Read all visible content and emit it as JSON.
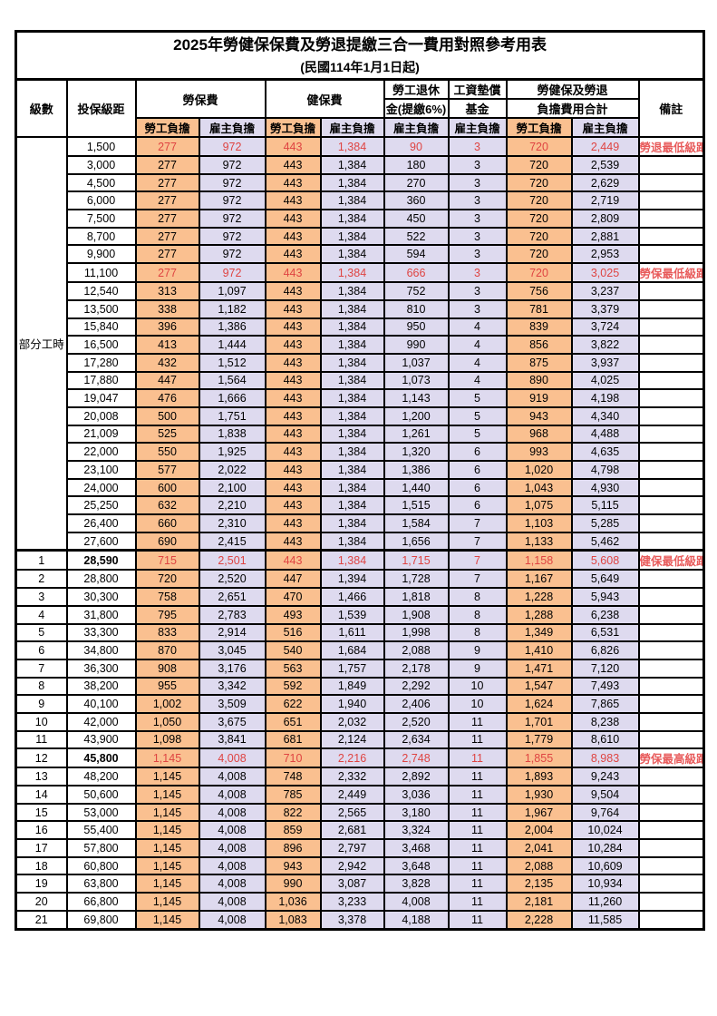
{
  "title": "2025年勞健保保費及勞退提繳三合一費用對照參考用表",
  "subtitle": "(民國114年1月1日起)",
  "columns": {
    "level": "級數",
    "bracket": "投保級距",
    "labor_insurance": "勞保費",
    "health_insurance": "健保費",
    "pension_line1": "勞工退休",
    "pension_line2": "金(提繳6%)",
    "wage_fund_line1": "工資墊償",
    "wage_fund_line2": "基金",
    "total_line1": "勞健保及勞退",
    "total_line2": "負擔費用合計",
    "remarks": "備註",
    "employee": "勞工負擔",
    "employer": "雇主負擔"
  },
  "part_time_label": "部分工時",
  "colors": {
    "employee_bg": "#FAC090",
    "employer_bg": "#DEDAEF",
    "highlight_text": "#DF4442",
    "border": "#000000"
  },
  "rows": [
    {
      "level": "",
      "bracket": "1,500",
      "li_emp": "277",
      "li_er": "972",
      "hi_emp": "443",
      "hi_er": "1,384",
      "pension": "90",
      "fund": "3",
      "tot_emp": "720",
      "tot_er": "2,449",
      "remark": "勞退最低級距",
      "red": true
    },
    {
      "level": "",
      "bracket": "3,000",
      "li_emp": "277",
      "li_er": "972",
      "hi_emp": "443",
      "hi_er": "1,384",
      "pension": "180",
      "fund": "3",
      "tot_emp": "720",
      "tot_er": "2,539",
      "remark": ""
    },
    {
      "level": "",
      "bracket": "4,500",
      "li_emp": "277",
      "li_er": "972",
      "hi_emp": "443",
      "hi_er": "1,384",
      "pension": "270",
      "fund": "3",
      "tot_emp": "720",
      "tot_er": "2,629",
      "remark": ""
    },
    {
      "level": "",
      "bracket": "6,000",
      "li_emp": "277",
      "li_er": "972",
      "hi_emp": "443",
      "hi_er": "1,384",
      "pension": "360",
      "fund": "3",
      "tot_emp": "720",
      "tot_er": "2,719",
      "remark": ""
    },
    {
      "level": "",
      "bracket": "7,500",
      "li_emp": "277",
      "li_er": "972",
      "hi_emp": "443",
      "hi_er": "1,384",
      "pension": "450",
      "fund": "3",
      "tot_emp": "720",
      "tot_er": "2,809",
      "remark": ""
    },
    {
      "level": "",
      "bracket": "8,700",
      "li_emp": "277",
      "li_er": "972",
      "hi_emp": "443",
      "hi_er": "1,384",
      "pension": "522",
      "fund": "3",
      "tot_emp": "720",
      "tot_er": "2,881",
      "remark": ""
    },
    {
      "level": "",
      "bracket": "9,900",
      "li_emp": "277",
      "li_er": "972",
      "hi_emp": "443",
      "hi_er": "1,384",
      "pension": "594",
      "fund": "3",
      "tot_emp": "720",
      "tot_er": "2,953",
      "remark": ""
    },
    {
      "level": "",
      "bracket": "11,100",
      "li_emp": "277",
      "li_er": "972",
      "hi_emp": "443",
      "hi_er": "1,384",
      "pension": "666",
      "fund": "3",
      "tot_emp": "720",
      "tot_er": "3,025",
      "remark": "勞保最低級距",
      "red": true
    },
    {
      "level": "",
      "bracket": "12,540",
      "li_emp": "313",
      "li_er": "1,097",
      "hi_emp": "443",
      "hi_er": "1,384",
      "pension": "752",
      "fund": "3",
      "tot_emp": "756",
      "tot_er": "3,237",
      "remark": ""
    },
    {
      "level": "",
      "bracket": "13,500",
      "li_emp": "338",
      "li_er": "1,182",
      "hi_emp": "443",
      "hi_er": "1,384",
      "pension": "810",
      "fund": "3",
      "tot_emp": "781",
      "tot_er": "3,379",
      "remark": ""
    },
    {
      "level": "",
      "bracket": "15,840",
      "li_emp": "396",
      "li_er": "1,386",
      "hi_emp": "443",
      "hi_er": "1,384",
      "pension": "950",
      "fund": "4",
      "tot_emp": "839",
      "tot_er": "3,724",
      "remark": ""
    },
    {
      "level": "",
      "bracket": "16,500",
      "li_emp": "413",
      "li_er": "1,444",
      "hi_emp": "443",
      "hi_er": "1,384",
      "pension": "990",
      "fund": "4",
      "tot_emp": "856",
      "tot_er": "3,822",
      "remark": ""
    },
    {
      "level": "",
      "bracket": "17,280",
      "li_emp": "432",
      "li_er": "1,512",
      "hi_emp": "443",
      "hi_er": "1,384",
      "pension": "1,037",
      "fund": "4",
      "tot_emp": "875",
      "tot_er": "3,937",
      "remark": ""
    },
    {
      "level": "",
      "bracket": "17,880",
      "li_emp": "447",
      "li_er": "1,564",
      "hi_emp": "443",
      "hi_er": "1,384",
      "pension": "1,073",
      "fund": "4",
      "tot_emp": "890",
      "tot_er": "4,025",
      "remark": ""
    },
    {
      "level": "",
      "bracket": "19,047",
      "li_emp": "476",
      "li_er": "1,666",
      "hi_emp": "443",
      "hi_er": "1,384",
      "pension": "1,143",
      "fund": "5",
      "tot_emp": "919",
      "tot_er": "4,198",
      "remark": ""
    },
    {
      "level": "",
      "bracket": "20,008",
      "li_emp": "500",
      "li_er": "1,751",
      "hi_emp": "443",
      "hi_er": "1,384",
      "pension": "1,200",
      "fund": "5",
      "tot_emp": "943",
      "tot_er": "4,340",
      "remark": ""
    },
    {
      "level": "",
      "bracket": "21,009",
      "li_emp": "525",
      "li_er": "1,838",
      "hi_emp": "443",
      "hi_er": "1,384",
      "pension": "1,261",
      "fund": "5",
      "tot_emp": "968",
      "tot_er": "4,488",
      "remark": ""
    },
    {
      "level": "",
      "bracket": "22,000",
      "li_emp": "550",
      "li_er": "1,925",
      "hi_emp": "443",
      "hi_er": "1,384",
      "pension": "1,320",
      "fund": "6",
      "tot_emp": "993",
      "tot_er": "4,635",
      "remark": ""
    },
    {
      "level": "",
      "bracket": "23,100",
      "li_emp": "577",
      "li_er": "2,022",
      "hi_emp": "443",
      "hi_er": "1,384",
      "pension": "1,386",
      "fund": "6",
      "tot_emp": "1,020",
      "tot_er": "4,798",
      "remark": ""
    },
    {
      "level": "",
      "bracket": "24,000",
      "li_emp": "600",
      "li_er": "2,100",
      "hi_emp": "443",
      "hi_er": "1,384",
      "pension": "1,440",
      "fund": "6",
      "tot_emp": "1,043",
      "tot_er": "4,930",
      "remark": ""
    },
    {
      "level": "",
      "bracket": "25,250",
      "li_emp": "632",
      "li_er": "2,210",
      "hi_emp": "443",
      "hi_er": "1,384",
      "pension": "1,515",
      "fund": "6",
      "tot_emp": "1,075",
      "tot_er": "5,115",
      "remark": ""
    },
    {
      "level": "",
      "bracket": "26,400",
      "li_emp": "660",
      "li_er": "2,310",
      "hi_emp": "443",
      "hi_er": "1,384",
      "pension": "1,584",
      "fund": "7",
      "tot_emp": "1,103",
      "tot_er": "5,285",
      "remark": ""
    },
    {
      "level": "",
      "bracket": "27,600",
      "li_emp": "690",
      "li_er": "2,415",
      "hi_emp": "443",
      "hi_er": "1,384",
      "pension": "1,656",
      "fund": "7",
      "tot_emp": "1,133",
      "tot_er": "5,462",
      "remark": ""
    },
    {
      "level": "1",
      "bracket": "28,590",
      "li_emp": "715",
      "li_er": "2,501",
      "hi_emp": "443",
      "hi_er": "1,384",
      "pension": "1,715",
      "fund": "7",
      "tot_emp": "1,158",
      "tot_er": "5,608",
      "remark": "健保最低級距",
      "red": true,
      "bold": true,
      "thick": true
    },
    {
      "level": "2",
      "bracket": "28,800",
      "li_emp": "720",
      "li_er": "2,520",
      "hi_emp": "447",
      "hi_er": "1,394",
      "pension": "1,728",
      "fund": "7",
      "tot_emp": "1,167",
      "tot_er": "5,649",
      "remark": ""
    },
    {
      "level": "3",
      "bracket": "30,300",
      "li_emp": "758",
      "li_er": "2,651",
      "hi_emp": "470",
      "hi_er": "1,466",
      "pension": "1,818",
      "fund": "8",
      "tot_emp": "1,228",
      "tot_er": "5,943",
      "remark": ""
    },
    {
      "level": "4",
      "bracket": "31,800",
      "li_emp": "795",
      "li_er": "2,783",
      "hi_emp": "493",
      "hi_er": "1,539",
      "pension": "1,908",
      "fund": "8",
      "tot_emp": "1,288",
      "tot_er": "6,238",
      "remark": ""
    },
    {
      "level": "5",
      "bracket": "33,300",
      "li_emp": "833",
      "li_er": "2,914",
      "hi_emp": "516",
      "hi_er": "1,611",
      "pension": "1,998",
      "fund": "8",
      "tot_emp": "1,349",
      "tot_er": "6,531",
      "remark": ""
    },
    {
      "level": "6",
      "bracket": "34,800",
      "li_emp": "870",
      "li_er": "3,045",
      "hi_emp": "540",
      "hi_er": "1,684",
      "pension": "2,088",
      "fund": "9",
      "tot_emp": "1,410",
      "tot_er": "6,826",
      "remark": ""
    },
    {
      "level": "7",
      "bracket": "36,300",
      "li_emp": "908",
      "li_er": "3,176",
      "hi_emp": "563",
      "hi_er": "1,757",
      "pension": "2,178",
      "fund": "9",
      "tot_emp": "1,471",
      "tot_er": "7,120",
      "remark": ""
    },
    {
      "level": "8",
      "bracket": "38,200",
      "li_emp": "955",
      "li_er": "3,342",
      "hi_emp": "592",
      "hi_er": "1,849",
      "pension": "2,292",
      "fund": "10",
      "tot_emp": "1,547",
      "tot_er": "7,493",
      "remark": ""
    },
    {
      "level": "9",
      "bracket": "40,100",
      "li_emp": "1,002",
      "li_er": "3,509",
      "hi_emp": "622",
      "hi_er": "1,940",
      "pension": "2,406",
      "fund": "10",
      "tot_emp": "1,624",
      "tot_er": "7,865",
      "remark": ""
    },
    {
      "level": "10",
      "bracket": "42,000",
      "li_emp": "1,050",
      "li_er": "3,675",
      "hi_emp": "651",
      "hi_er": "2,032",
      "pension": "2,520",
      "fund": "11",
      "tot_emp": "1,701",
      "tot_er": "8,238",
      "remark": ""
    },
    {
      "level": "11",
      "bracket": "43,900",
      "li_emp": "1,098",
      "li_er": "3,841",
      "hi_emp": "681",
      "hi_er": "2,124",
      "pension": "2,634",
      "fund": "11",
      "tot_emp": "1,779",
      "tot_er": "8,610",
      "remark": ""
    },
    {
      "level": "12",
      "bracket": "45,800",
      "li_emp": "1,145",
      "li_er": "4,008",
      "hi_emp": "710",
      "hi_er": "2,216",
      "pension": "2,748",
      "fund": "11",
      "tot_emp": "1,855",
      "tot_er": "8,983",
      "remark": "勞保最高級距",
      "red": true,
      "bold": true
    },
    {
      "level": "13",
      "bracket": "48,200",
      "li_emp": "1,145",
      "li_er": "4,008",
      "hi_emp": "748",
      "hi_er": "2,332",
      "pension": "2,892",
      "fund": "11",
      "tot_emp": "1,893",
      "tot_er": "9,243",
      "remark": ""
    },
    {
      "level": "14",
      "bracket": "50,600",
      "li_emp": "1,145",
      "li_er": "4,008",
      "hi_emp": "785",
      "hi_er": "2,449",
      "pension": "3,036",
      "fund": "11",
      "tot_emp": "1,930",
      "tot_er": "9,504",
      "remark": ""
    },
    {
      "level": "15",
      "bracket": "53,000",
      "li_emp": "1,145",
      "li_er": "4,008",
      "hi_emp": "822",
      "hi_er": "2,565",
      "pension": "3,180",
      "fund": "11",
      "tot_emp": "1,967",
      "tot_er": "9,764",
      "remark": ""
    },
    {
      "level": "16",
      "bracket": "55,400",
      "li_emp": "1,145",
      "li_er": "4,008",
      "hi_emp": "859",
      "hi_er": "2,681",
      "pension": "3,324",
      "fund": "11",
      "tot_emp": "2,004",
      "tot_er": "10,024",
      "remark": ""
    },
    {
      "level": "17",
      "bracket": "57,800",
      "li_emp": "1,145",
      "li_er": "4,008",
      "hi_emp": "896",
      "hi_er": "2,797",
      "pension": "3,468",
      "fund": "11",
      "tot_emp": "2,041",
      "tot_er": "10,284",
      "remark": ""
    },
    {
      "level": "18",
      "bracket": "60,800",
      "li_emp": "1,145",
      "li_er": "4,008",
      "hi_emp": "943",
      "hi_er": "2,942",
      "pension": "3,648",
      "fund": "11",
      "tot_emp": "2,088",
      "tot_er": "10,609",
      "remark": ""
    },
    {
      "level": "19",
      "bracket": "63,800",
      "li_emp": "1,145",
      "li_er": "4,008",
      "hi_emp": "990",
      "hi_er": "3,087",
      "pension": "3,828",
      "fund": "11",
      "tot_emp": "2,135",
      "tot_er": "10,934",
      "remark": ""
    },
    {
      "level": "20",
      "bracket": "66,800",
      "li_emp": "1,145",
      "li_er": "4,008",
      "hi_emp": "1,036",
      "hi_er": "3,233",
      "pension": "4,008",
      "fund": "11",
      "tot_emp": "2,181",
      "tot_er": "11,260",
      "remark": ""
    },
    {
      "level": "21",
      "bracket": "69,800",
      "li_emp": "1,145",
      "li_er": "4,008",
      "hi_emp": "1,083",
      "hi_er": "3,378",
      "pension": "4,188",
      "fund": "11",
      "tot_emp": "2,228",
      "tot_er": "11,585",
      "remark": ""
    }
  ]
}
